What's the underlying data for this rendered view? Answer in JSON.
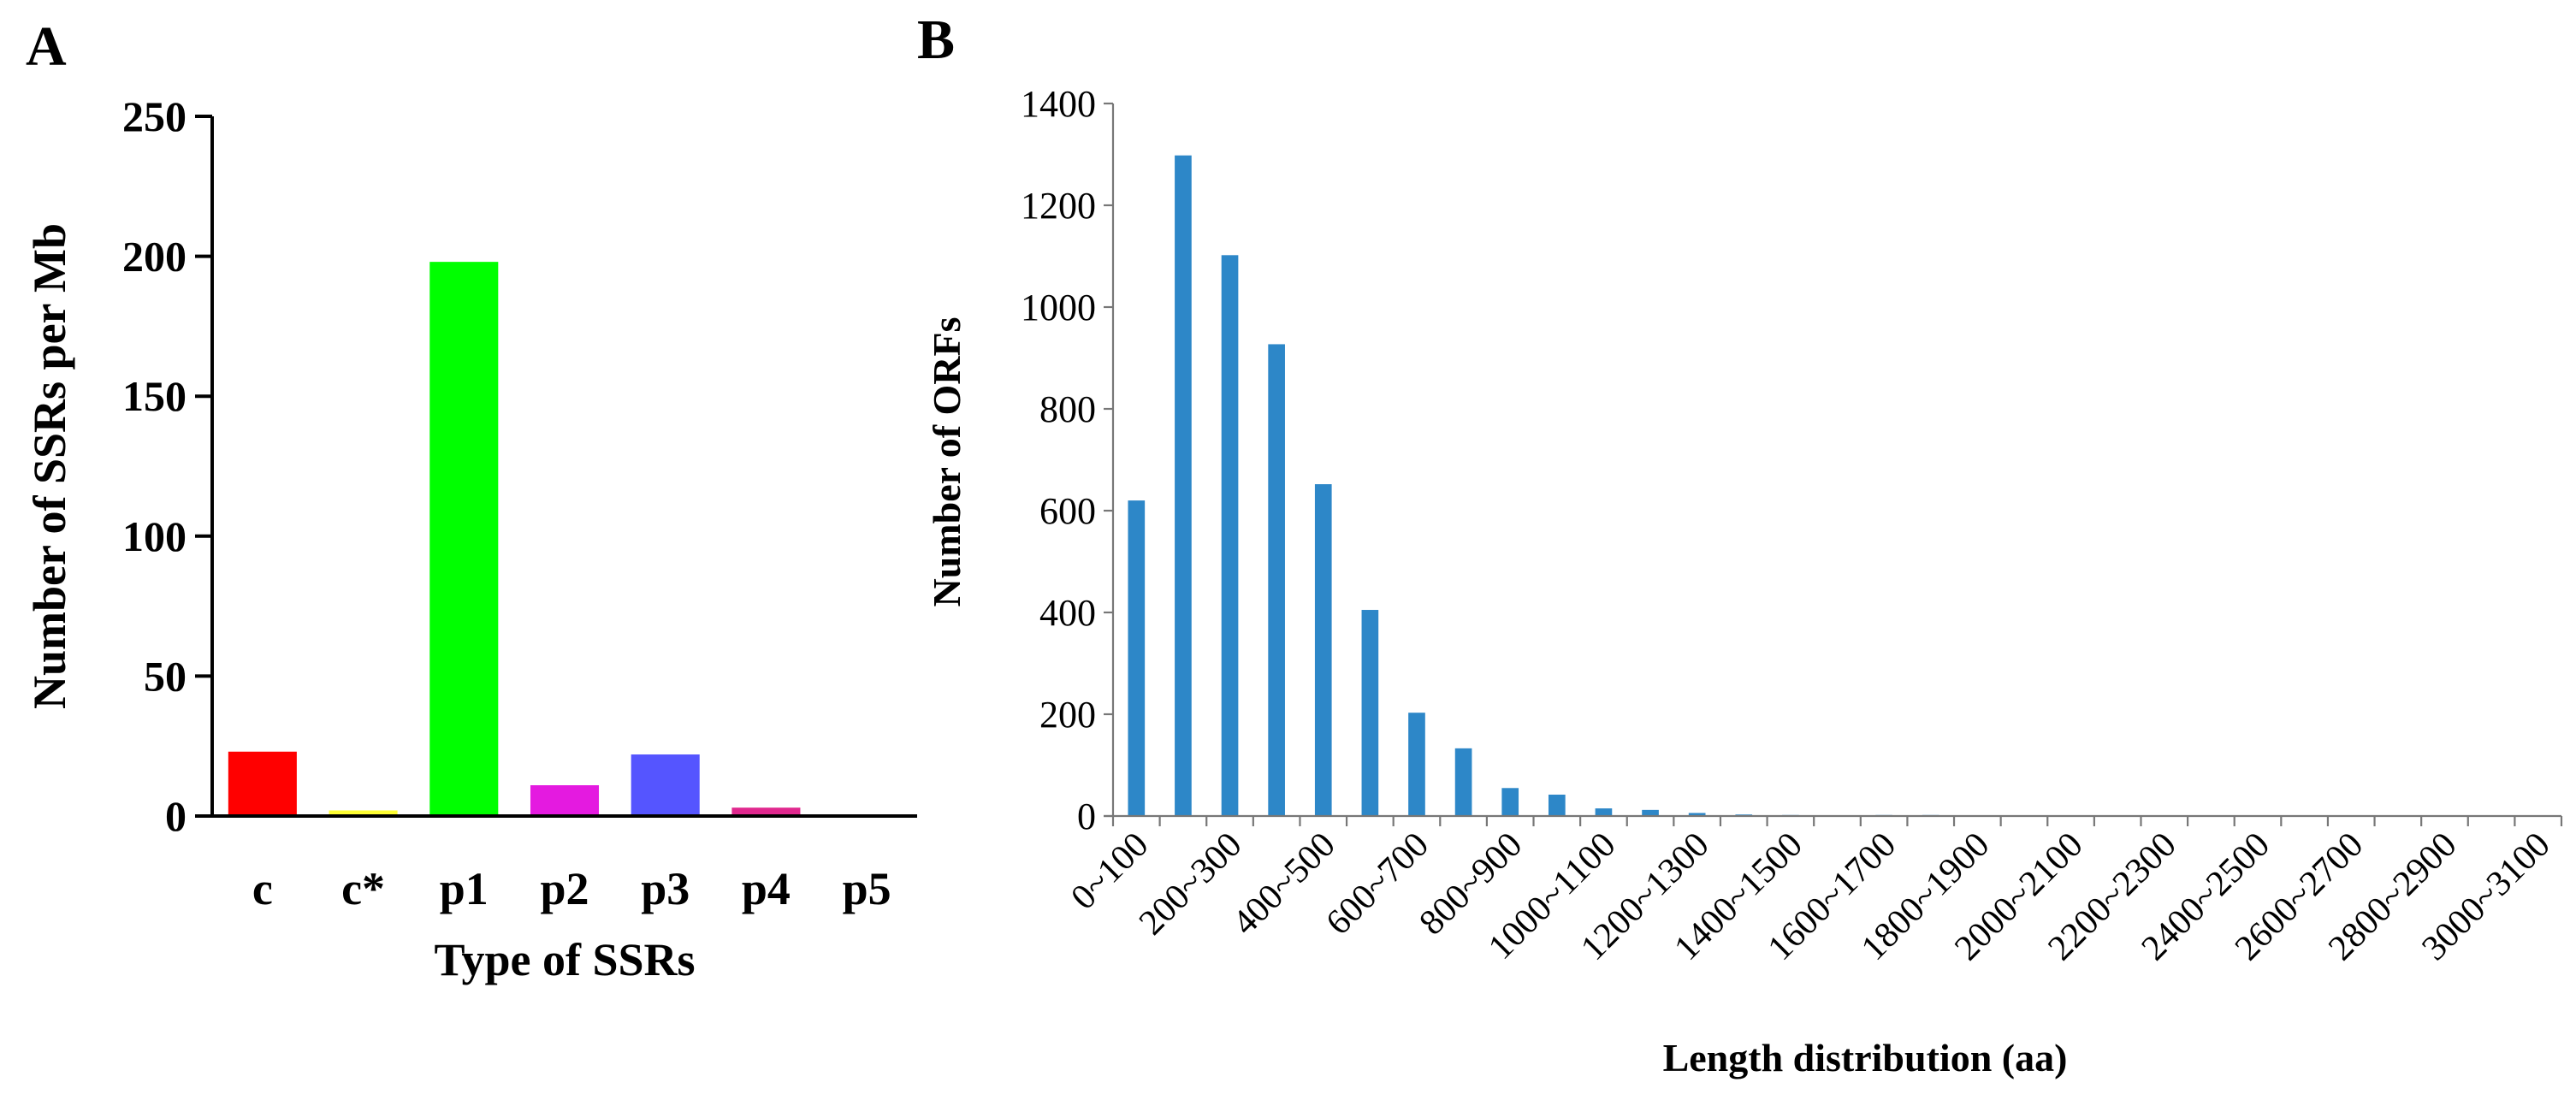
{
  "panels": {
    "a": "A",
    "b": "B"
  },
  "chart_data": [
    {
      "type": "bar",
      "panel": "A",
      "categories": [
        "c",
        "c*",
        "p1",
        "p2",
        "p3",
        "p4",
        "p5"
      ],
      "values": [
        23,
        2,
        198,
        11,
        22,
        3,
        0
      ],
      "colors": [
        "#ff0000",
        "#ffff33",
        "#00ff00",
        "#e41ae0",
        "#5555ff",
        "#e0288e",
        "#000000"
      ],
      "xlabel": "Type of SSRs",
      "ylabel": "Number of SSRs per Mb",
      "ylim": [
        0,
        250
      ],
      "yticks": [
        "0",
        "50",
        "100",
        "150",
        "200",
        "250"
      ],
      "grid": false
    },
    {
      "type": "bar",
      "panel": "B",
      "categories": [
        "0~100",
        "100~200",
        "200~300",
        "300~400",
        "400~500",
        "500~600",
        "600~700",
        "700~800",
        "800~900",
        "900~1000",
        "1000~1100",
        "1100~1200",
        "1200~1300",
        "1300~1400",
        "1400~1500",
        "1500~1600",
        "1600~1700",
        "1700~1800",
        "1800~1900",
        "1900~2000",
        "2000~2100",
        "2100~2200",
        "2200~2300",
        "2300~2400",
        "2400~2500",
        "2500~2600",
        "2600~2700",
        "2700~2800",
        "2800~2900",
        "2900~3000",
        "3000~3100"
      ],
      "tick_labels": [
        "0~100",
        "200~300",
        "400~500",
        "600~700",
        "800~900",
        "1000~1100",
        "1200~1300",
        "1400~1500",
        "1600~1700",
        "1800~1900",
        "2000~2100",
        "2200~2300",
        "2400~2500",
        "2600~2700",
        "2800~2900",
        "3000~3100"
      ],
      "values": [
        620,
        1298,
        1102,
        927,
        652,
        405,
        203,
        133,
        55,
        42,
        15,
        12,
        6,
        3,
        2,
        1,
        2,
        2,
        1,
        1,
        0,
        0,
        0,
        0,
        0,
        0,
        0,
        0,
        0,
        0,
        0
      ],
      "color": "#2d87c8",
      "xlabel": "Length distribution (aa)",
      "ylabel": "Number of ORFs",
      "ylim": [
        0,
        1400
      ],
      "yticks": [
        "0",
        "200",
        "400",
        "600",
        "800",
        "1000",
        "1200",
        "1400"
      ],
      "grid": false
    }
  ]
}
